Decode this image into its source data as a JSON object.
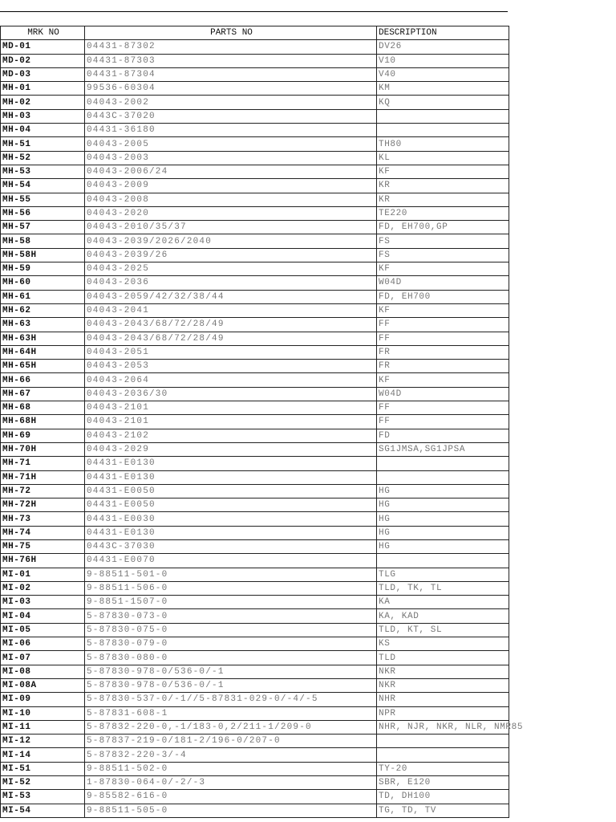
{
  "table": {
    "headers": [
      "MRK NO",
      "PARTS NO",
      "DESCRIPTION"
    ],
    "rows": [
      [
        "MD-01",
        "04431-87302",
        "DV26"
      ],
      [
        "MD-02",
        "04431-87303",
        "V10"
      ],
      [
        "MD-03",
        "04431-87304",
        "V40"
      ],
      [
        "MH-01",
        "99536-60304",
        "KM"
      ],
      [
        "MH-02",
        "04043-2002",
        "KQ"
      ],
      [
        "MH-03",
        "0443C-37020",
        ""
      ],
      [
        "MH-04",
        "04431-36180",
        ""
      ],
      [
        "MH-51",
        "04043-2005",
        "TH80"
      ],
      [
        "MH-52",
        "04043-2003",
        "KL"
      ],
      [
        "MH-53",
        "04043-2006/24",
        "KF"
      ],
      [
        "MH-54",
        "04043-2009",
        "KR"
      ],
      [
        "MH-55",
        "04043-2008",
        "KR"
      ],
      [
        "MH-56",
        "04043-2020",
        "TE220"
      ],
      [
        "MH-57",
        "04043-2010/35/37",
        "FD, EH700,GP"
      ],
      [
        "MH-58",
        "04043-2039/2026/2040",
        "FS"
      ],
      [
        "MH-58H",
        "04043-2039/26",
        "FS"
      ],
      [
        "MH-59",
        "04043-2025",
        "KF"
      ],
      [
        "MH-60",
        "04043-2036",
        "W04D"
      ],
      [
        "MH-61",
        "04043-2059/42/32/38/44",
        "FD, EH700"
      ],
      [
        "MH-62",
        "04043-2041",
        "KF"
      ],
      [
        "MH-63",
        "04043-2043/68/72/28/49",
        "FF"
      ],
      [
        "MH-63H",
        "04043-2043/68/72/28/49",
        "FF"
      ],
      [
        "MH-64H",
        "04043-2051",
        "FR"
      ],
      [
        "MH-65H",
        "04043-2053",
        "FR"
      ],
      [
        "MH-66",
        "04043-2064",
        "KF"
      ],
      [
        "MH-67",
        "04043-2036/30",
        "W04D"
      ],
      [
        "MH-68",
        "04043-2101",
        "FF"
      ],
      [
        "MH-68H",
        "04043-2101",
        "FF"
      ],
      [
        "MH-69",
        "04043-2102",
        "FD"
      ],
      [
        "MH-70H",
        "04043-2029",
        "SG1JMSA,SG1JPSA"
      ],
      [
        "MH-71",
        "04431-E0130",
        ""
      ],
      [
        "MH-71H",
        "04431-E0130",
        ""
      ],
      [
        "MH-72",
        "04431-E0050",
        "HG"
      ],
      [
        "MH-72H",
        "04431-E0050",
        "HG"
      ],
      [
        "MH-73",
        "04431-E0030",
        "HG"
      ],
      [
        "MH-74",
        "04431-E0130",
        "HG"
      ],
      [
        "MH-75",
        "0443C-37030",
        "HG"
      ],
      [
        "MH-76H",
        "04431-E0070",
        ""
      ],
      [
        "MI-01",
        "9-88511-501-0",
        "TLG"
      ],
      [
        "MI-02",
        "9-88511-506-0",
        "TLD, TK, TL"
      ],
      [
        "MI-03",
        "9-8851-1507-0",
        "KA"
      ],
      [
        "MI-04",
        "5-87830-073-0",
        "KA,  KAD"
      ],
      [
        "MI-05",
        "5-87830-075-0",
        "TLD,  KT,  SL"
      ],
      [
        "MI-06",
        "5-87830-079-0",
        "KS"
      ],
      [
        "MI-07",
        "5-87830-080-0",
        "TLD"
      ],
      [
        "MI-08",
        "5-87830-978-0/536-0/-1",
        "NKR"
      ],
      [
        "MI-08A",
        "5-87830-978-0/536-0/-1",
        "NKR"
      ],
      [
        "MI-09",
        "5-87830-537-0/-1//5-87831-029-0/-4/-5",
        "NHR"
      ],
      [
        "MI-10",
        "5-87831-608-1",
        "NPR"
      ],
      [
        "MI-11",
        "5-87832-220-0,-1/183-0,2/211-1/209-0",
        "NHR, NJR, NKR, NLR, NMR85"
      ],
      [
        "MI-12",
        "5-87837-219-0/181-2/196-0/207-0",
        ""
      ],
      [
        "MI-14",
        "5-87832-220-3/-4",
        ""
      ],
      [
        "MI-51",
        "9-88511-502-0",
        "TY-20"
      ],
      [
        "MI-52",
        "1-87830-064-0/-2/-3",
        "SBR,  E120"
      ],
      [
        "MI-53",
        "9-85582-616-0",
        "TD,  DH100"
      ],
      [
        "MI-54",
        "9-88511-505-0",
        "TG,  TD,  TV"
      ]
    ]
  }
}
